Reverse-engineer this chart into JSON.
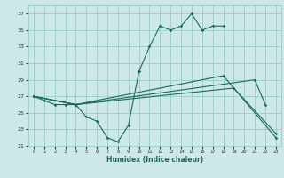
{
  "title": "",
  "xlabel": "Humidex (Indice chaleur)",
  "bg_color": "#cce8e8",
  "grid_color": "#99cccc",
  "line_color": "#1a6b5a",
  "xlim": [
    -0.5,
    23.5
  ],
  "ylim": [
    21,
    38
  ],
  "yticks": [
    21,
    23,
    25,
    27,
    29,
    31,
    33,
    35,
    37
  ],
  "xticks": [
    0,
    1,
    2,
    3,
    4,
    5,
    6,
    7,
    8,
    9,
    10,
    11,
    12,
    13,
    14,
    15,
    16,
    17,
    18,
    19,
    20,
    21,
    22,
    23
  ],
  "line1": [
    27.0,
    26.5,
    26.0,
    26.0,
    26.0,
    24.5,
    24.0,
    22.0,
    21.5,
    23.5,
    30.0,
    33.0,
    35.5,
    35.0,
    35.5,
    37.0,
    35.0,
    35.5,
    35.5,
    null,
    null,
    null,
    null,
    null
  ],
  "line2_pts": [
    [
      0,
      27.0
    ],
    [
      4,
      26.0
    ],
    [
      21,
      29.0
    ],
    [
      22,
      26.0
    ]
  ],
  "line3_pts": [
    [
      0,
      27.0
    ],
    [
      4,
      26.0
    ],
    [
      19,
      28.0
    ],
    [
      23,
      22.5
    ]
  ],
  "line4_pts": [
    [
      0,
      27.0
    ],
    [
      4,
      26.0
    ],
    [
      18,
      29.5
    ],
    [
      23,
      22.0
    ]
  ]
}
